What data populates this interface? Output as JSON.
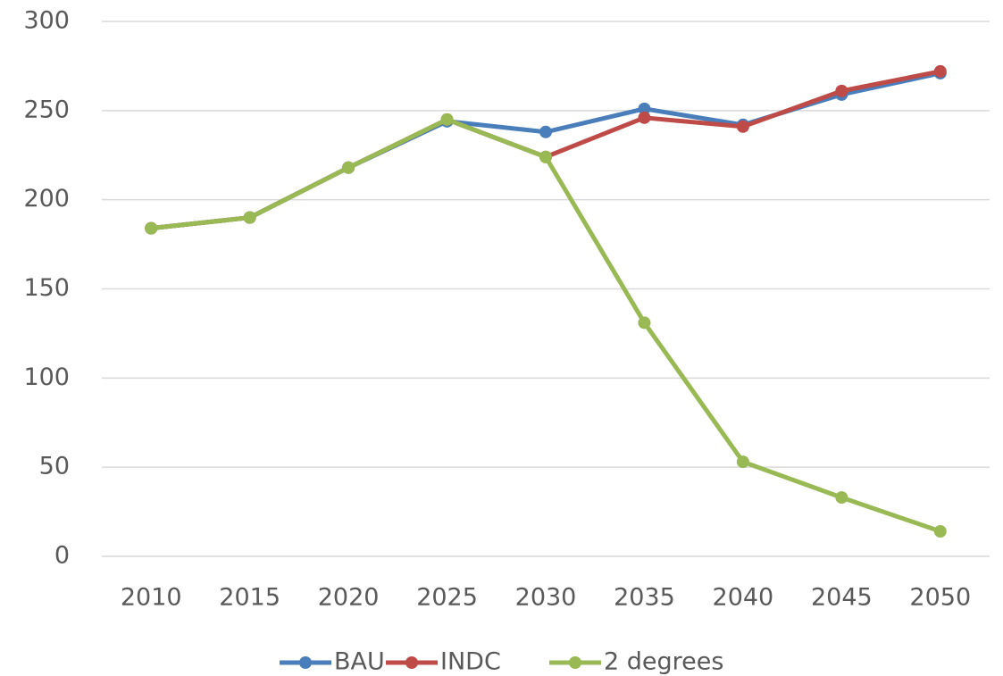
{
  "chart_data": {
    "type": "line",
    "categories": [
      "2010",
      "2015",
      "2020",
      "2025",
      "2030",
      "2035",
      "2040",
      "2045",
      "2050"
    ],
    "series": [
      {
        "name": "BAU",
        "color": "#4a7ebb",
        "values": [
          184,
          190,
          218,
          244,
          238,
          251,
          242,
          259,
          271
        ]
      },
      {
        "name": "INDC",
        "color": "#be4b48",
        "values": [
          184,
          190,
          218,
          245,
          224,
          246,
          241,
          261,
          272
        ]
      },
      {
        "name": "2 degrees",
        "color": "#98b954",
        "values": [
          184,
          190,
          218,
          245,
          224,
          131,
          53,
          33,
          14
        ]
      }
    ],
    "ylim": [
      0,
      300
    ],
    "yticks": [
      0,
      50,
      100,
      150,
      200,
      250,
      300
    ],
    "grid": true,
    "legend": "bottom"
  }
}
